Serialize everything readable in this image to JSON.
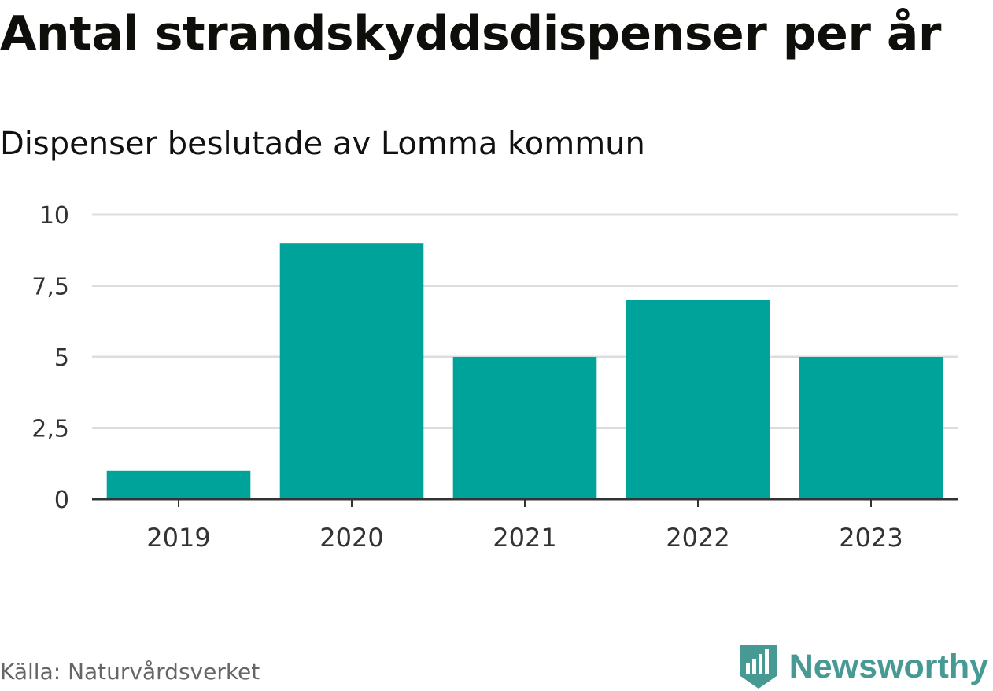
{
  "title": "Antal strandskyddsdispenser per år",
  "subtitle": "Dispenser beslutade av Lomma kommun",
  "source": "Källa: Naturvårdsverket",
  "brand": {
    "name": "Newsworthy",
    "icon": "newsworthy-logo-icon",
    "color": "#479a94"
  },
  "colors": {
    "bar": "#00a39a",
    "grid": "#dddddd",
    "axis": "#333333",
    "tick_text": "#333333"
  },
  "chart_data": {
    "type": "bar",
    "title": "Antal strandskyddsdispenser per år",
    "subtitle": "Dispenser beslutade av Lomma kommun",
    "categories": [
      "2019",
      "2020",
      "2021",
      "2022",
      "2023"
    ],
    "values": [
      1,
      9,
      5,
      7,
      5
    ],
    "ylim": [
      0,
      10
    ],
    "yticks": [
      0,
      2.5,
      5,
      7.5,
      10
    ],
    "ytick_labels": [
      "0",
      "2,5",
      "5",
      "7,5",
      "10"
    ],
    "xlabel": "",
    "ylabel": "",
    "grid": true,
    "legend": "none"
  }
}
